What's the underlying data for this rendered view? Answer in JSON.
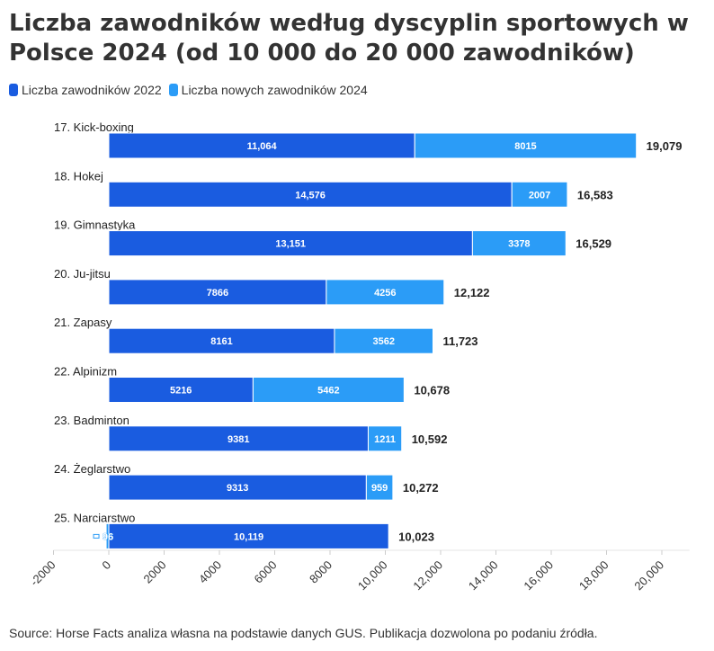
{
  "title": "Liczba zawodników według dyscyplin sportowych w Polsce 2024 (od 10 000 do 20 000 zawodników)",
  "source": "Source: Horse Facts analiza własna na podstawie danych GUS. Publikacja dozwolona po podaniu źródła.",
  "colors": {
    "series1": "#1a5ce0",
    "series2": "#2b9cf7"
  },
  "chart_data": {
    "type": "bar",
    "orientation": "horizontal",
    "stacked": true,
    "categories": [
      "17. Kick-boxing",
      "18. Hokej",
      "19. Gimnastyka",
      "20. Ju-jitsu",
      "21. Zapasy",
      "22. Alpinizm",
      "23. Badminton",
      "24. Żeglarstwo",
      "25. Narciarstwo"
    ],
    "series": [
      {
        "name": "Liczba zawodników 2022",
        "values": [
          11064,
          14576,
          13151,
          7866,
          8161,
          5216,
          9381,
          9313,
          10119
        ],
        "labels": [
          "11,064",
          "14,576",
          "13,151",
          "7866",
          "8161",
          "5216",
          "9381",
          "9313",
          "10,119"
        ]
      },
      {
        "name": "Liczba nowych zawodników 2024",
        "values": [
          8015,
          2007,
          3378,
          4256,
          3562,
          5462,
          1211,
          959,
          -96
        ],
        "labels": [
          "8015",
          "2007",
          "3378",
          "4256",
          "3562",
          "5462",
          "1211",
          "959",
          "-96"
        ]
      }
    ],
    "totals": [
      "19,079",
      "16,583",
      "16,529",
      "12,122",
      "11,723",
      "10,678",
      "10,592",
      "10,272",
      "10,023"
    ],
    "xlim": [
      -2000,
      21000
    ],
    "xticks": [
      -2000,
      0,
      2000,
      4000,
      6000,
      8000,
      10000,
      12000,
      14000,
      16000,
      18000,
      20000
    ],
    "xtick_labels": [
      "-2000",
      "0",
      "2000",
      "4000",
      "6000",
      "8000",
      "10,000",
      "12,000",
      "14,000",
      "16,000",
      "18,000",
      "20,000"
    ],
    "legend_position": "top-left",
    "grid": false
  }
}
